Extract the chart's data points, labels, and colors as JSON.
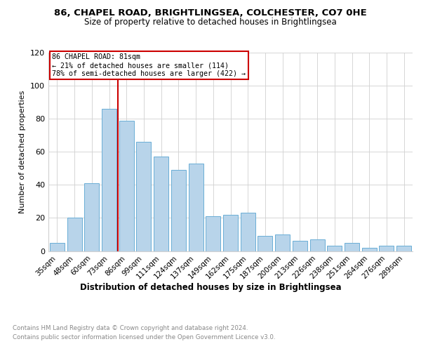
{
  "title": "86, CHAPEL ROAD, BRIGHTLINGSEA, COLCHESTER, CO7 0HE",
  "subtitle": "Size of property relative to detached houses in Brightlingsea",
  "xlabel": "Distribution of detached houses by size in Brightlingsea",
  "ylabel": "Number of detached properties",
  "categories": [
    "35sqm",
    "48sqm",
    "60sqm",
    "73sqm",
    "86sqm",
    "99sqm",
    "111sqm",
    "124sqm",
    "137sqm",
    "149sqm",
    "162sqm",
    "175sqm",
    "187sqm",
    "200sqm",
    "213sqm",
    "226sqm",
    "238sqm",
    "251sqm",
    "264sqm",
    "276sqm",
    "289sqm"
  ],
  "values": [
    5,
    20,
    41,
    86,
    79,
    66,
    57,
    49,
    53,
    21,
    22,
    23,
    9,
    10,
    6,
    7,
    3,
    5,
    2,
    3,
    3
  ],
  "bar_color": "#b8d4ea",
  "bar_edge_color": "#6aaed6",
  "redline_x": 3.5,
  "redline_color": "#cc0000",
  "redline_label": "86 CHAPEL ROAD: 81sqm",
  "annotation_line1": "← 21% of detached houses are smaller (114)",
  "annotation_line2": "78% of semi-detached houses are larger (422) →",
  "annotation_box_color": "#cc0000",
  "ylim": [
    0,
    120
  ],
  "yticks": [
    0,
    20,
    40,
    60,
    80,
    100,
    120
  ],
  "footnote1": "Contains HM Land Registry data © Crown copyright and database right 2024.",
  "footnote2": "Contains public sector information licensed under the Open Government Licence v3.0.",
  "background_color": "#ffffff",
  "grid_color": "#d0d0d0"
}
